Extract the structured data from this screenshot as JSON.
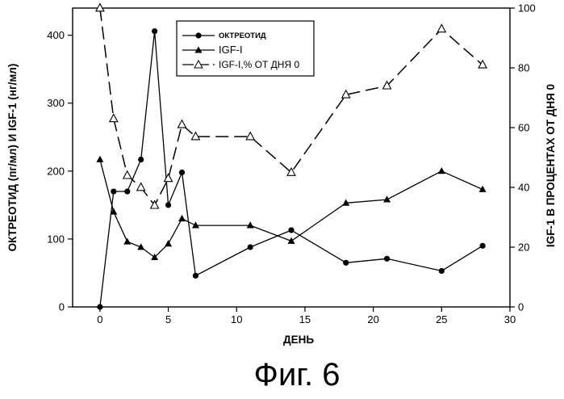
{
  "chart_data": {
    "type": "line",
    "x_label": "ДЕНЬ",
    "y_label_left": "ОКТРЕОТИД (пг/мл) И IGF-1 (нг/мл)",
    "y_label_right": "IGF-1 В ПРОЦЕНТАХ ОТ ДНЯ 0",
    "x_range": [
      -2,
      30
    ],
    "x_ticks": [
      "0",
      "5",
      "10",
      "15",
      "20",
      "25",
      "30"
    ],
    "y_left_range": [
      0,
      440
    ],
    "y_left_ticks": [
      "0",
      "100",
      "200",
      "300",
      "400"
    ],
    "y_right_range": [
      0,
      100
    ],
    "y_right_ticks": [
      "0",
      "20",
      "40",
      "60",
      "80",
      "100"
    ],
    "legend_position": "top-center",
    "series": [
      {
        "name": "ОКТРЕОТИД",
        "axis": "left",
        "marker": "circle-filled",
        "line_style": "solid",
        "x": [
          0,
          1,
          2,
          3,
          4,
          5,
          6,
          7,
          11,
          14,
          18,
          21,
          25,
          28
        ],
        "y": [
          0,
          170,
          170,
          217,
          406,
          150,
          198,
          46,
          88,
          113,
          65,
          71,
          53,
          90
        ]
      },
      {
        "name": "IGF-1",
        "axis": "left",
        "marker": "triangle-filled",
        "line_style": "solid",
        "x": [
          0,
          1,
          2,
          3,
          4,
          5,
          6,
          7,
          11,
          14,
          18,
          21,
          25,
          28
        ],
        "y": [
          217,
          140,
          96,
          88,
          73,
          93,
          130,
          120,
          120,
          97,
          153,
          158,
          200,
          173
        ]
      },
      {
        "name": "IGF-I,% от дня 0",
        "axis": "right",
        "marker": "triangle-open",
        "line_style": "dashed",
        "x": [
          0,
          1,
          2,
          3,
          4,
          5,
          6,
          7,
          11,
          14,
          18,
          21,
          25,
          28
        ],
        "y": [
          100,
          63,
          44,
          40,
          34,
          43,
          61,
          57,
          57,
          45,
          71,
          74,
          93,
          81
        ]
      }
    ]
  },
  "legend": {
    "items": [
      {
        "label": "ОКТРЕОТИД"
      },
      {
        "label": "IGF-I"
      },
      {
        "label": "IGF-I,% ОТ ДНЯ 0"
      }
    ]
  },
  "caption": "Фиг. 6"
}
